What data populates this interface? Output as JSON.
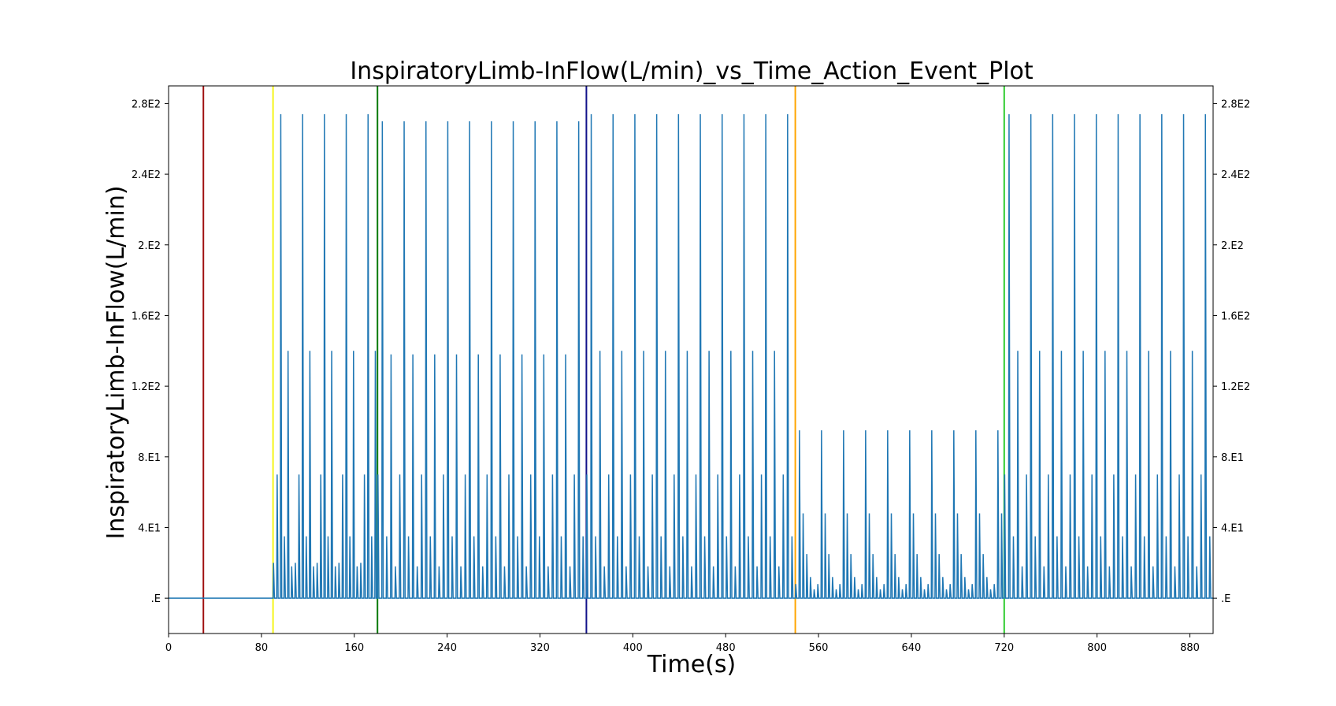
{
  "chart_data": {
    "type": "line",
    "title": "InspiratoryLimb-InFlow(L/min)_vs_Time_Action_Event_Plot",
    "xlabel": "Time(s)",
    "ylabel": "InspiratoryLimb-InFlow(L/min)",
    "xlim": [
      0,
      900
    ],
    "ylim": [
      -20,
      290
    ],
    "x_ticks": [
      0,
      80,
      160,
      240,
      320,
      400,
      480,
      560,
      640,
      720,
      800,
      880
    ],
    "x_tick_labels": [
      "0",
      "80",
      "160",
      "240",
      "320",
      "400",
      "480",
      "560",
      "640",
      "720",
      "800",
      "880"
    ],
    "y_ticks": [
      0,
      40,
      80,
      120,
      160,
      200,
      240,
      280
    ],
    "y_tick_labels": [
      ".E",
      "4.E1",
      "8.E1",
      "1.2E2",
      "1.6E2",
      "2.E2",
      "2.4E2",
      "2.8E2"
    ],
    "grid": false,
    "line_color": "#1f77b4",
    "series": [
      {
        "segments": [
          {
            "start": 0,
            "end": 90,
            "cycle_period": 0,
            "peaks": [],
            "baseline": 0
          },
          {
            "start": 90,
            "end": 180,
            "cycle_period": 18.8,
            "peaks": [
              20,
              70,
              274,
              35,
              140,
              18
            ],
            "baseline": 0
          },
          {
            "start": 180,
            "end": 360,
            "cycle_period": 18.8,
            "peaks": [
              70,
              270,
              35,
              138,
              18
            ],
            "baseline": 0
          },
          {
            "start": 360,
            "end": 540,
            "cycle_period": 18.8,
            "peaks": [
              70,
              274,
              35,
              140,
              18
            ],
            "baseline": 0
          },
          {
            "start": 540,
            "end": 720,
            "cycle_period": 19.0,
            "peaks": [
              8,
              95,
              48,
              25,
              12,
              5
            ],
            "baseline": 0
          },
          {
            "start": 720,
            "end": 900,
            "cycle_period": 18.8,
            "peaks": [
              70,
              274,
              35,
              140,
              18
            ],
            "baseline": 0
          }
        ]
      }
    ],
    "event_lines": [
      {
        "x": 30,
        "color": "#a01010"
      },
      {
        "x": 90,
        "color": "#f5f51a"
      },
      {
        "x": 180,
        "color": "#0a7a0a"
      },
      {
        "x": 360,
        "color": "#12128a"
      },
      {
        "x": 540,
        "color": "#ffa500"
      },
      {
        "x": 720,
        "color": "#2ecc2e"
      }
    ]
  }
}
